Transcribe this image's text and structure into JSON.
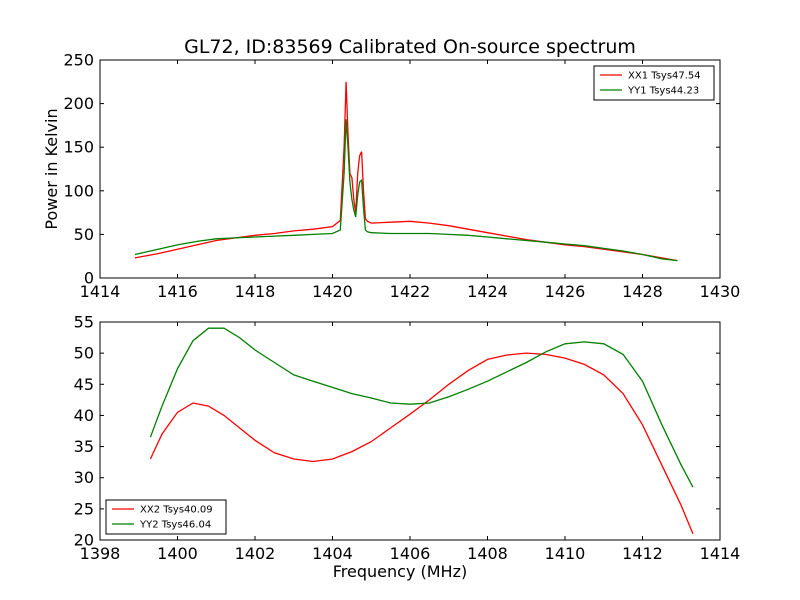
{
  "title": "GL72, ID:83569 Calibrated On-source spectrum",
  "chart_data": [
    {
      "type": "line",
      "ylabel": "Power in Kelvin",
      "xlabel": "",
      "xlim": [
        1414,
        1430
      ],
      "ylim": [
        0,
        250
      ],
      "xticks": [
        1414,
        1416,
        1418,
        1420,
        1422,
        1424,
        1426,
        1428,
        1430
      ],
      "yticks": [
        0,
        50,
        100,
        150,
        200,
        250
      ],
      "legend_position": "top-right",
      "series": [
        {
          "name": "XX1 Tsys47.54",
          "color": "#ff0000",
          "x": [
            1414.9,
            1415.5,
            1416.0,
            1416.5,
            1417.0,
            1417.5,
            1418.0,
            1418.5,
            1419.0,
            1419.5,
            1420.0,
            1420.2,
            1420.3,
            1420.35,
            1420.4,
            1420.45,
            1420.5,
            1420.55,
            1420.6,
            1420.65,
            1420.7,
            1420.75,
            1420.8,
            1420.85,
            1420.9,
            1421.0,
            1421.5,
            1422.0,
            1422.5,
            1423.0,
            1423.5,
            1424.0,
            1424.5,
            1425.0,
            1425.5,
            1426.0,
            1426.5,
            1427.0,
            1427.5,
            1428.0,
            1428.5,
            1428.9
          ],
          "y": [
            23,
            28,
            33,
            38,
            43,
            46,
            49,
            51,
            54,
            56,
            59,
            66,
            150,
            225,
            165,
            120,
            115,
            90,
            75,
            120,
            140,
            145,
            100,
            68,
            65,
            63,
            64,
            65,
            63,
            60,
            56,
            52,
            48,
            44,
            41,
            38,
            36,
            33,
            30,
            27,
            23,
            20
          ]
        },
        {
          "name": "YY1 Tsys44.23",
          "color": "#008000",
          "x": [
            1414.9,
            1415.5,
            1416.0,
            1416.5,
            1417.0,
            1417.5,
            1418.0,
            1418.5,
            1419.0,
            1419.5,
            1420.0,
            1420.2,
            1420.3,
            1420.35,
            1420.4,
            1420.45,
            1420.5,
            1420.55,
            1420.6,
            1420.65,
            1420.7,
            1420.75,
            1420.8,
            1420.85,
            1420.9,
            1421.0,
            1421.5,
            1422.0,
            1422.5,
            1423.0,
            1423.5,
            1424.0,
            1424.5,
            1425.0,
            1425.5,
            1426.0,
            1426.5,
            1427.0,
            1427.5,
            1428.0,
            1428.5,
            1428.9
          ],
          "y": [
            27,
            33,
            38,
            42,
            45,
            46,
            47,
            48,
            49,
            50,
            51,
            55,
            120,
            182,
            150,
            110,
            90,
            78,
            70,
            95,
            110,
            112,
            80,
            55,
            53,
            52,
            51,
            51,
            51,
            50,
            49,
            47,
            45,
            43,
            41,
            39,
            37,
            34,
            31,
            27,
            22,
            20
          ]
        }
      ]
    },
    {
      "type": "line",
      "xlabel": "Frequency (MHz)",
      "ylabel": "",
      "xlim": [
        1398,
        1414
      ],
      "ylim": [
        20,
        55
      ],
      "xticks": [
        1398,
        1400,
        1402,
        1404,
        1406,
        1408,
        1410,
        1412,
        1414
      ],
      "yticks": [
        20,
        25,
        30,
        35,
        40,
        45,
        50,
        55
      ],
      "legend_position": "bottom-left",
      "series": [
        {
          "name": "XX2 Tsys40.09",
          "color": "#ff0000",
          "x": [
            1399.3,
            1399.6,
            1400.0,
            1400.4,
            1400.8,
            1401.2,
            1401.6,
            1402.0,
            1402.5,
            1403.0,
            1403.5,
            1404.0,
            1404.5,
            1405.0,
            1405.5,
            1406.0,
            1406.5,
            1407.0,
            1407.5,
            1408.0,
            1408.5,
            1409.0,
            1409.5,
            1410.0,
            1410.5,
            1411.0,
            1411.5,
            1412.0,
            1412.5,
            1413.0,
            1413.3
          ],
          "y": [
            33,
            37,
            40.5,
            42,
            41.5,
            40,
            38,
            36,
            34,
            33,
            32.6,
            33,
            34.2,
            35.8,
            38,
            40.2,
            42.5,
            45,
            47.2,
            49,
            49.7,
            50,
            49.8,
            49.2,
            48.2,
            46.5,
            43.5,
            38.5,
            32,
            25.5,
            21
          ]
        },
        {
          "name": "YY2 Tsys46.04",
          "color": "#008000",
          "x": [
            1399.3,
            1399.6,
            1400.0,
            1400.4,
            1400.8,
            1401.2,
            1401.6,
            1402.0,
            1402.5,
            1403.0,
            1403.5,
            1404.0,
            1404.5,
            1405.0,
            1405.5,
            1406.0,
            1406.5,
            1407.0,
            1407.5,
            1408.0,
            1408.5,
            1409.0,
            1409.5,
            1410.0,
            1410.5,
            1411.0,
            1411.5,
            1412.0,
            1412.5,
            1413.0,
            1413.3
          ],
          "y": [
            36.5,
            41.5,
            47.5,
            52,
            54,
            54,
            52.5,
            50.5,
            48.5,
            46.5,
            45.5,
            44.5,
            43.5,
            42.8,
            42,
            41.8,
            42,
            43,
            44.2,
            45.5,
            47,
            48.5,
            50.2,
            51.5,
            51.8,
            51.5,
            49.8,
            45.5,
            38.5,
            32,
            28.5
          ]
        }
      ]
    }
  ]
}
